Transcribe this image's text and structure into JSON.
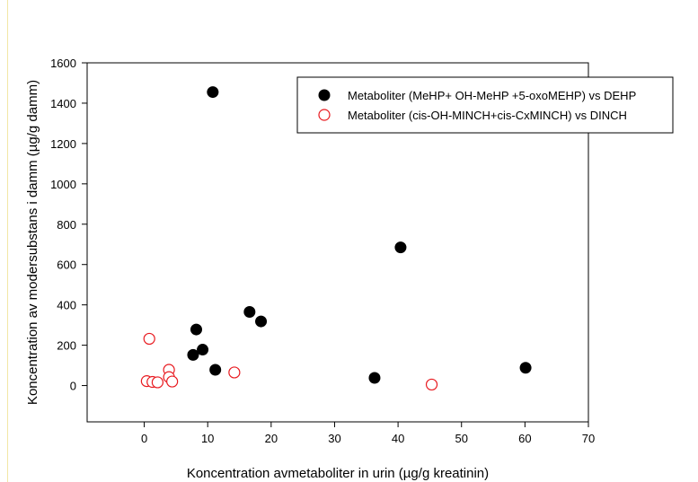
{
  "chart_data": {
    "type": "scatter",
    "xlabel": "Koncentration avmetaboliter in urin (µg/g kreatinin)",
    "ylabel": "Koncentration av modersubstans i damm (µg/g damm)",
    "xlim": [
      -9,
      70
    ],
    "ylim": [
      -180,
      1600
    ],
    "x_ticks": [
      0,
      10,
      20,
      30,
      40,
      50,
      60,
      70
    ],
    "y_ticks": [
      0,
      200,
      400,
      600,
      800,
      1000,
      1200,
      1400,
      1600
    ],
    "grid": false,
    "legend_position": "top-right",
    "series": [
      {
        "name": "Metaboliter (MeHP+ OH-MeHP +5-oxoMEHP) vs DEHP",
        "marker": "filled-circle",
        "color": "#000000",
        "x": [
          10.8,
          40.4,
          16.6,
          18.4,
          8.2,
          9.2,
          7.7,
          11.2,
          36.3,
          60.1
        ],
        "y": [
          1455,
          685,
          365,
          318,
          278,
          178,
          152,
          78,
          38,
          88
        ]
      },
      {
        "name": "Metaboliter (cis-OH-MINCH+cis-CxMINCH) vs DINCH",
        "marker": "open-circle",
        "color": "#e8191f",
        "x": [
          0.8,
          3.9,
          14.2,
          3.9,
          0.4,
          1.3,
          2.1,
          4.4,
          45.3
        ],
        "y": [
          232,
          78,
          65,
          42,
          22,
          18,
          16,
          20,
          5
        ]
      }
    ]
  }
}
